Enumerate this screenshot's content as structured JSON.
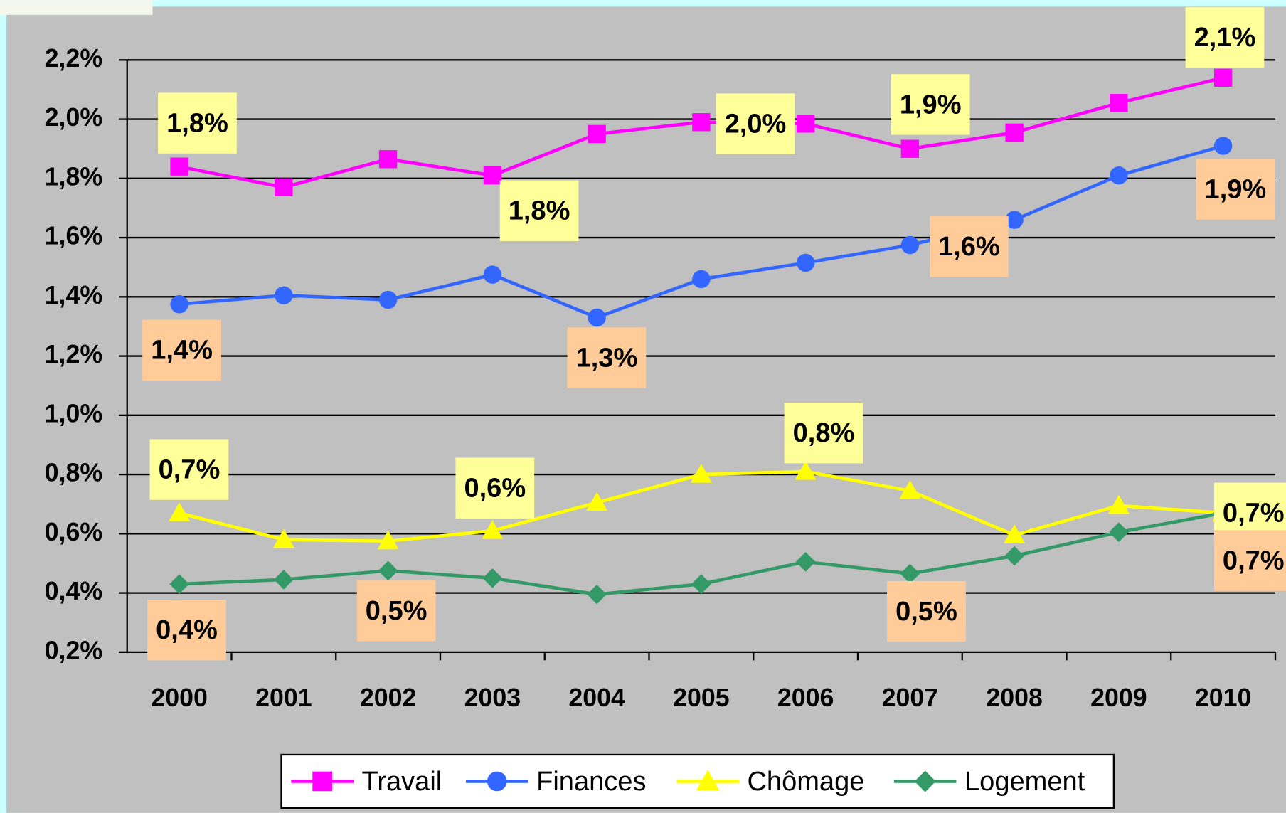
{
  "chart_data": {
    "type": "line",
    "categories": [
      "2000",
      "2001",
      "2002",
      "2003",
      "2004",
      "2005",
      "2006",
      "2007",
      "2008",
      "2009",
      "2010"
    ],
    "ylim": [
      0.2,
      2.2
    ],
    "yticks": [
      {
        "value": 0.2,
        "label": "0,2%"
      },
      {
        "value": 0.4,
        "label": "0,4%"
      },
      {
        "value": 0.6,
        "label": "0,6%"
      },
      {
        "value": 0.8,
        "label": "0,8%"
      },
      {
        "value": 1.0,
        "label": "1,0%"
      },
      {
        "value": 1.2,
        "label": "1,2%"
      },
      {
        "value": 1.4,
        "label": "1,4%"
      },
      {
        "value": 1.6,
        "label": "1,6%"
      },
      {
        "value": 1.8,
        "label": "1,8%"
      },
      {
        "value": 2.0,
        "label": "2,0%"
      },
      {
        "value": 2.2,
        "label": "2,2%"
      }
    ],
    "grid": true,
    "legend": "bottom",
    "series": [
      {
        "name": "Travail",
        "color": "#ff00ff",
        "marker": "square",
        "label_color": "#ffff99",
        "values": [
          1.84,
          1.77,
          1.865,
          1.81,
          1.95,
          1.99,
          1.985,
          1.9,
          1.955,
          2.055,
          2.14
        ],
        "value_labels": [
          "1,8%",
          null,
          null,
          "1,8%",
          null,
          "2,0%",
          null,
          "1,9%",
          null,
          null,
          "2,1%"
        ]
      },
      {
        "name": "Finances",
        "color": "#3366ff",
        "marker": "circle",
        "label_color": "#ffcc99",
        "values": [
          1.375,
          1.405,
          1.39,
          1.475,
          1.33,
          1.46,
          1.515,
          1.575,
          1.66,
          1.81,
          1.91
        ],
        "value_labels": [
          "1,4%",
          null,
          null,
          null,
          "1,3%",
          null,
          null,
          "1,6%",
          null,
          null,
          "1,9%"
        ]
      },
      {
        "name": "Chômage",
        "color": "#ffff00",
        "marker": "triangle",
        "label_color": "#ffff99",
        "values": [
          0.67,
          0.58,
          0.575,
          0.61,
          0.705,
          0.8,
          0.81,
          0.745,
          0.595,
          0.695,
          0.67
        ],
        "value_labels": [
          "0,7%",
          null,
          null,
          "0,6%",
          null,
          null,
          "0,8%",
          null,
          null,
          null,
          "0,7%"
        ]
      },
      {
        "name": "Logement",
        "color": "#339966",
        "marker": "diamond",
        "label_color": "#ffcc99",
        "values": [
          0.43,
          0.445,
          0.475,
          0.45,
          0.395,
          0.43,
          0.505,
          0.465,
          0.525,
          0.605,
          0.67
        ],
        "value_labels": [
          "0,4%",
          null,
          "0,5%",
          null,
          null,
          null,
          null,
          "0,5%",
          null,
          null,
          "0,7%"
        ]
      }
    ]
  }
}
